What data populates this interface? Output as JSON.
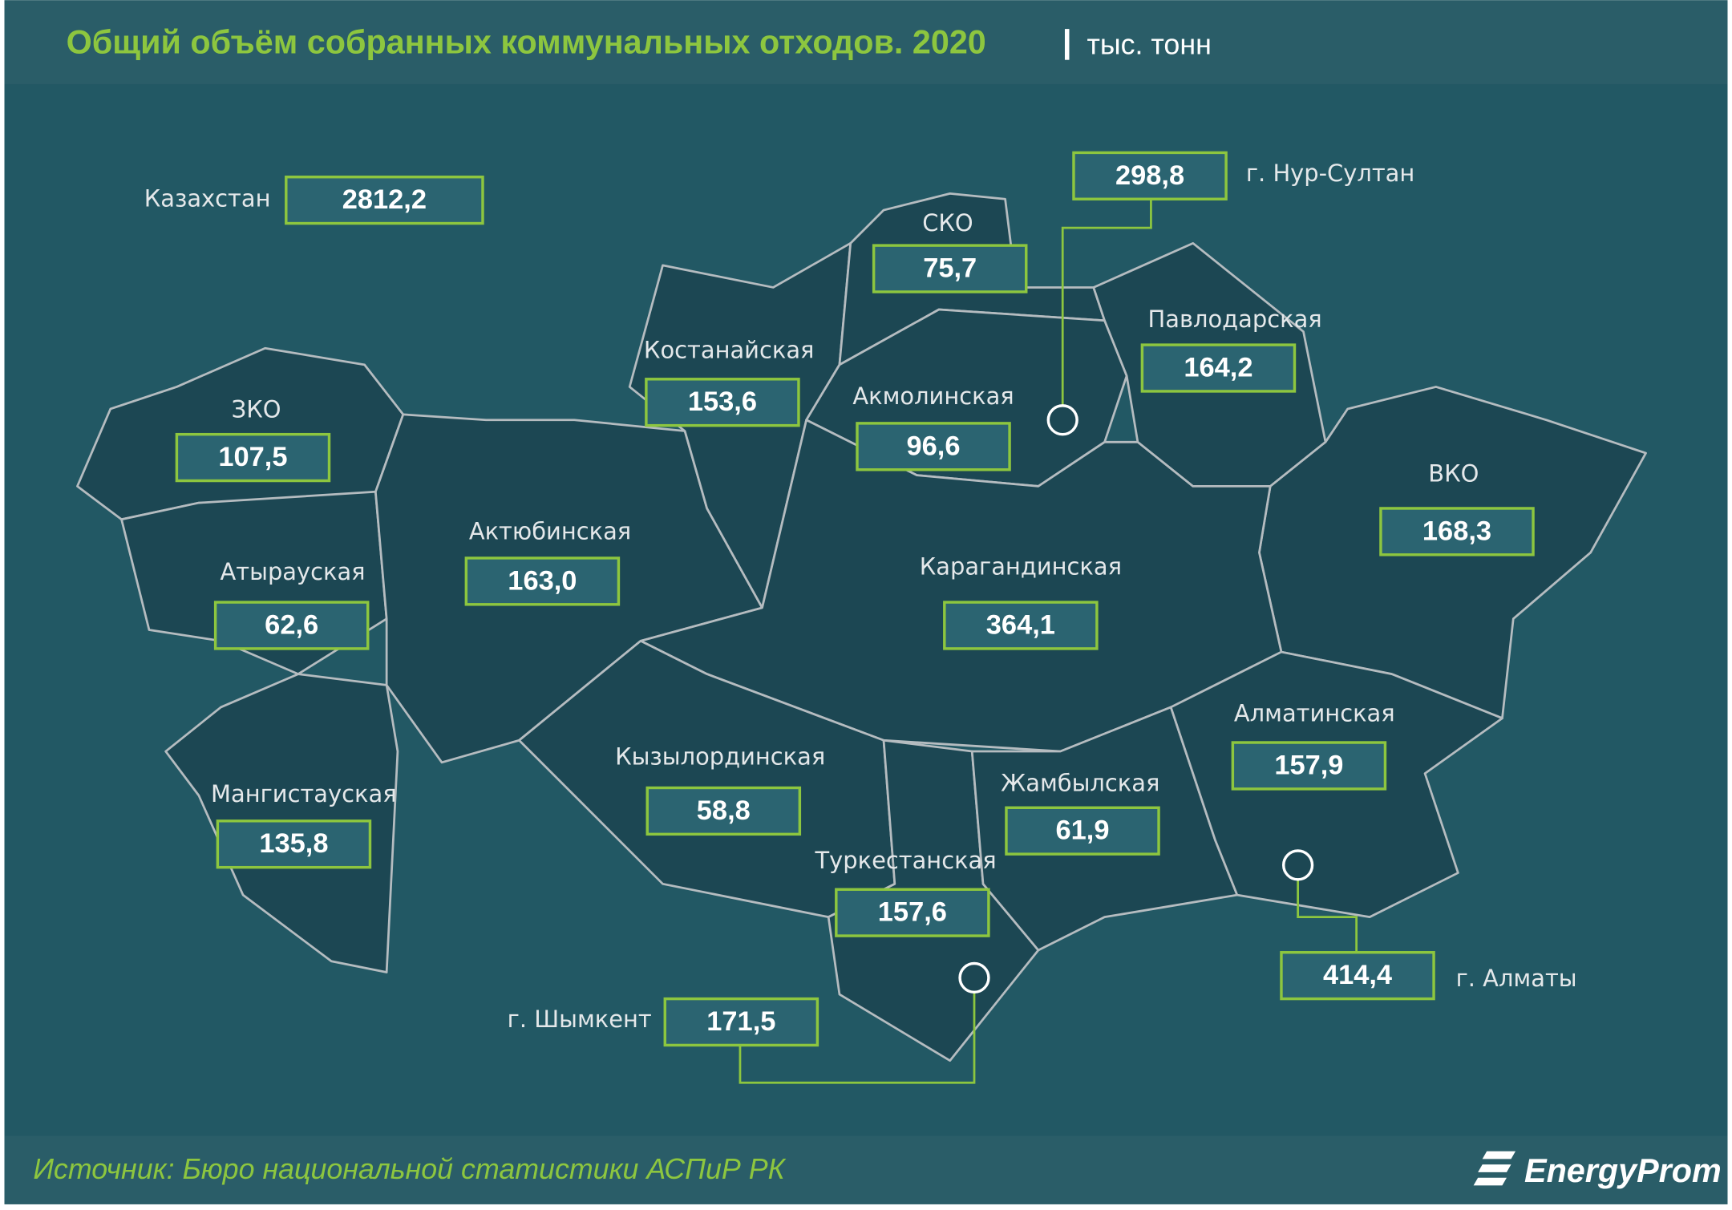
{
  "header": {
    "title": "Общий объём собранных коммунальных отходов. 2020",
    "unit": "тыс. тонн"
  },
  "total": {
    "label": "Казахстан",
    "value": "2812,2"
  },
  "regions": [
    {
      "name": "ЗКО",
      "value": "107,5"
    },
    {
      "name": "Атырауская",
      "value": "62,6"
    },
    {
      "name": "Мангистауская",
      "value": "135,8"
    },
    {
      "name": "Актюбинская",
      "value": "163,0"
    },
    {
      "name": "Костанайская",
      "value": "153,6"
    },
    {
      "name": "СКО",
      "value": "75,7"
    },
    {
      "name": "Акмолинская",
      "value": "96,6"
    },
    {
      "name": "Павлодарская",
      "value": "164,2"
    },
    {
      "name": "ВКО",
      "value": "168,3"
    },
    {
      "name": "Карагандинская",
      "value": "364,1"
    },
    {
      "name": "Кызылординская",
      "value": "58,8"
    },
    {
      "name": "Туркестанская",
      "value": "157,6"
    },
    {
      "name": "Жамбылская",
      "value": "61,9"
    },
    {
      "name": "Алматинская",
      "value": "157,9"
    }
  ],
  "cities": [
    {
      "name": "г. Нур-Султан",
      "value": "298,8"
    },
    {
      "name": "г. Алматы",
      "value": "414,4"
    },
    {
      "name": "г. Шымкент",
      "value": "171,5"
    }
  ],
  "source": "Источник: Бюро национальной  статистики АСПиР РК",
  "logo": "EnergyProm"
}
